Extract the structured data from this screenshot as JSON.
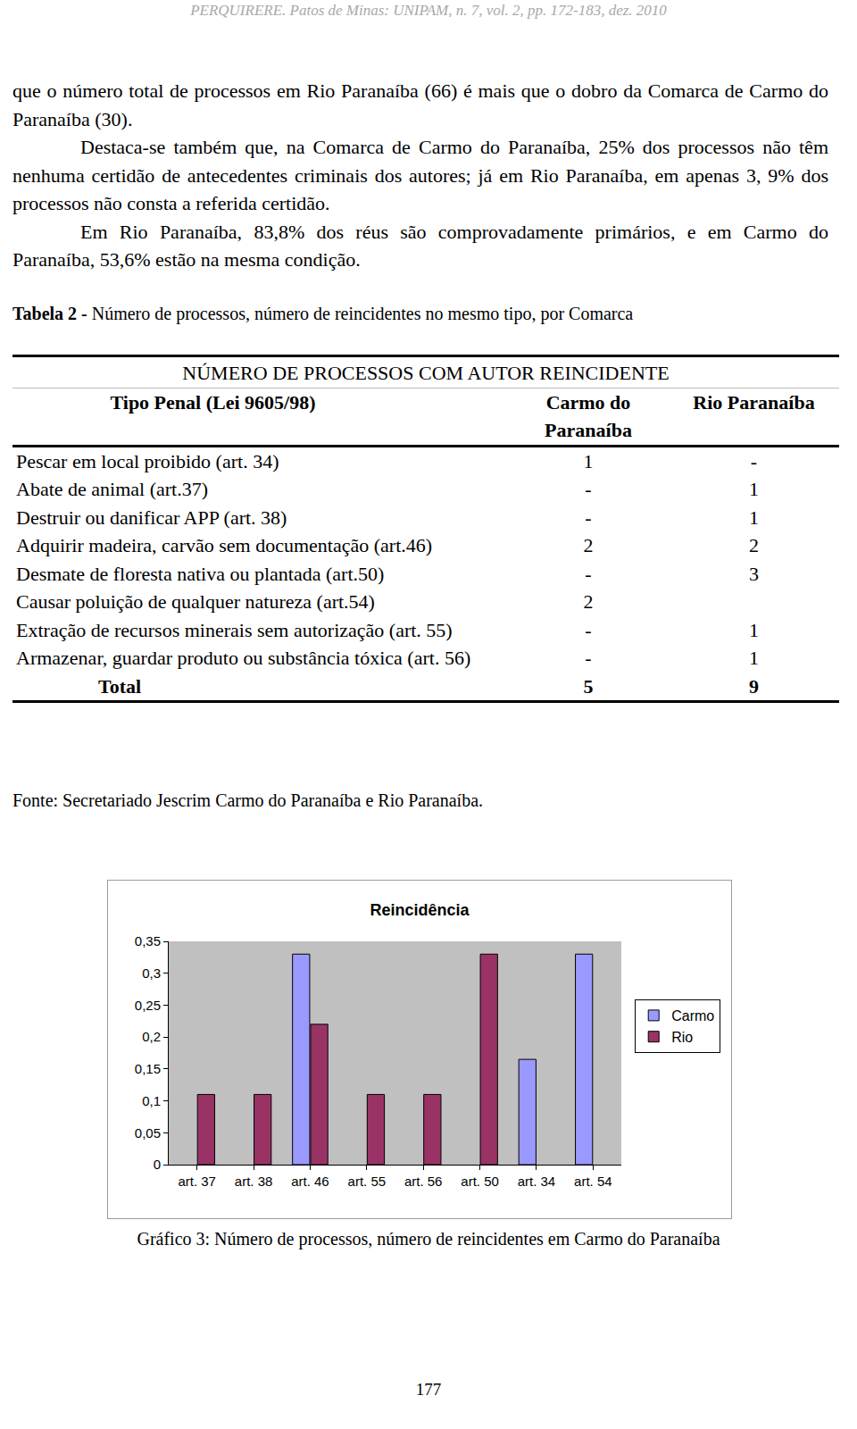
{
  "header": "PERQUIRERE. Patos de Minas: UNIPAM, n. 7, vol. 2, pp. 172-183, dez. 2010",
  "paragraphs": [
    "que o número total de processos em Rio Paranaíba (66) é mais que o dobro da Comarca de Carmo do Paranaíba (30).",
    "Destaca-se também que, na Comarca de Carmo do Paranaíba, 25% dos processos não têm nenhuma certidão de antecedentes criminais dos autores; já em Rio Paranaíba, em apenas 3, 9% dos processos não consta a referida certidão.",
    "Em Rio Paranaíba, 83,8% dos réus são comprovadamente primários, e em Carmo do Paranaíba, 53,6% estão na mesma condição."
  ],
  "table": {
    "caption_label": "Tabela 2 -",
    "caption_text": "Número de processos, número de reincidentes no mesmo tipo, por Comarca",
    "group_header": "NÚMERO DE PROCESSOS COM AUTOR REINCIDENTE",
    "columns": [
      "Tipo Penal (Lei 9605/98)",
      "Carmo do Paranaíba",
      "Rio Paranaíba"
    ],
    "rows": [
      [
        "Pescar em local proibido (art. 34)",
        1,
        "-"
      ],
      [
        "Abate de animal (art.37)",
        "-",
        1
      ],
      [
        "Destruir ou danificar APP (art. 38)",
        "-",
        1
      ],
      [
        "Adquirir madeira, carvão sem documentação (art.46)",
        2,
        2
      ],
      [
        "Desmate de floresta nativa ou plantada (art.50)",
        "-",
        3
      ],
      [
        "Causar poluição de qualquer natureza (art.54)",
        2,
        null
      ],
      [
        "Extração de recursos minerais sem autorização (art. 55)",
        "-",
        1
      ],
      [
        "Armazenar, guardar produto ou substância tóxica (art. 56)",
        "-",
        1
      ]
    ],
    "total": [
      "Total",
      5,
      9
    ]
  },
  "source": "Fonte: Secretariado Jescrim Carmo do Paranaíba e Rio Paranaíba.",
  "chart_data": {
    "type": "bar",
    "title": "Reincidência",
    "categories": [
      "art. 37",
      "art. 38",
      "art. 46",
      "art. 55",
      "art. 56",
      "art. 50",
      "art. 34",
      "art. 54"
    ],
    "series": [
      {
        "name": "Carmo",
        "color": "#9999ff",
        "values": [
          null,
          null,
          0.33,
          null,
          null,
          null,
          0.165,
          0.33
        ]
      },
      {
        "name": "Rio",
        "color": "#993366",
        "values": [
          0.11,
          0.11,
          0.22,
          0.11,
          0.11,
          0.33,
          null,
          null
        ]
      }
    ],
    "ylim": [
      0,
      0.35
    ],
    "yticks": [
      0,
      {
        "value": 0.05,
        "label": "0,05"
      },
      {
        "value": 0.1,
        "label": "0,1"
      },
      {
        "value": 0.15,
        "label": "0,15"
      },
      {
        "value": 0.2,
        "label": "0,2"
      },
      {
        "value": 0.25,
        "label": "0,25"
      },
      {
        "value": 0.3,
        "label": "0,3"
      },
      {
        "value": 0.35,
        "label": "0,35"
      }
    ],
    "grid": false,
    "legend": "right"
  },
  "figure_caption": "Gráfico 3: Número de processos, número de reincidentes em Carmo do Paranaíba",
  "page_number": "177"
}
